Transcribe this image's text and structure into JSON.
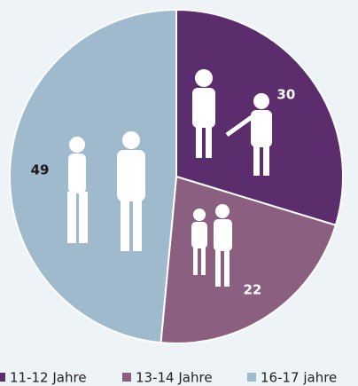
{
  "chart_data": {
    "type": "pie",
    "categories": [
      "11-12 Jahre",
      "13-14 Jahre",
      "16-17 jahre"
    ],
    "values": [
      30,
      22,
      49
    ],
    "colors": [
      "#5c2d6c",
      "#8b5f80",
      "#9fbacd"
    ],
    "label_colors": [
      "#ffffff",
      "#ffffff",
      "#1a1a1a"
    ]
  }
}
